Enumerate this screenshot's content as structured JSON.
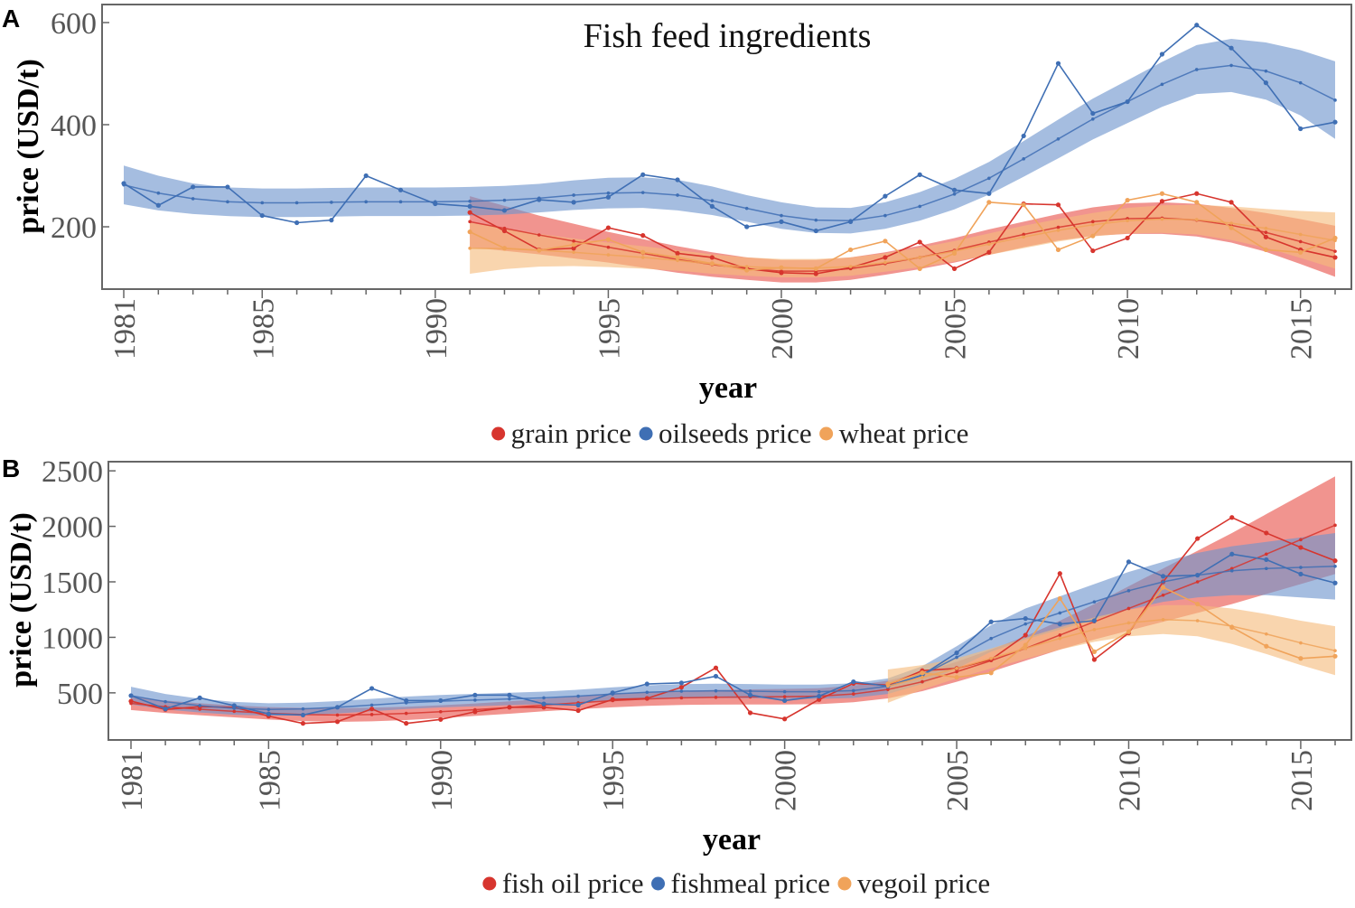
{
  "figure_labels": [
    "A",
    "B"
  ],
  "chart_data": [
    {
      "type": "line",
      "panel": "A",
      "title": "Fish feed ingredients",
      "xlabel": "year",
      "ylabel": "price (USD/t)",
      "xlim": [
        1981,
        2016
      ],
      "ylim": [
        85,
        630
      ],
      "x_ticks": [
        1981,
        1985,
        1990,
        1995,
        2000,
        2005,
        2010,
        2015
      ],
      "y_ticks": [
        200,
        400,
        600
      ],
      "legend_position": "bottom-center",
      "series": [
        {
          "name": "grain price",
          "color": "#d7352e",
          "band_color": "#e8524a",
          "x": [
            1991,
            1992,
            1993,
            1994,
            1995,
            1996,
            1997,
            1998,
            1999,
            2000,
            2001,
            2002,
            2003,
            2004,
            2005,
            2006,
            2007,
            2008,
            2009,
            2010,
            2011,
            2012,
            2013,
            2014,
            2015,
            2016
          ],
          "y": [
            228,
            192,
            155,
            158,
            198,
            183,
            148,
            140,
            118,
            110,
            108,
            120,
            140,
            170,
            118,
            150,
            245,
            243,
            153,
            178,
            250,
            265,
            248,
            180,
            155,
            140
          ],
          "trend": [
            210,
            197,
            184,
            172,
            160,
            148,
            136,
            126,
            118,
            113,
            113,
            118,
            128,
            140,
            154,
            170,
            185,
            199,
            210,
            216,
            217,
            213,
            203,
            189,
            171,
            152
          ],
          "band": [
            50,
            44,
            38,
            34,
            30,
            28,
            26,
            24,
            22,
            22,
            22,
            22,
            22,
            23,
            24,
            25,
            25,
            26,
            28,
            30,
            31,
            32,
            34,
            38,
            44,
            50
          ]
        },
        {
          "name": "oilseeds price",
          "color": "#3f6fb4",
          "band_color": "#6d95cd",
          "x": [
            1981,
            1982,
            1983,
            1984,
            1985,
            1986,
            1987,
            1988,
            1989,
            1990,
            1991,
            1992,
            1993,
            1994,
            1995,
            1996,
            1997,
            1998,
            1999,
            2000,
            2001,
            2002,
            2003,
            2004,
            2005,
            2006,
            2007,
            2008,
            2009,
            2010,
            2011,
            2012,
            2013,
            2014,
            2015,
            2016
          ],
          "y": [
            285,
            242,
            278,
            278,
            222,
            208,
            213,
            300,
            272,
            245,
            240,
            232,
            253,
            248,
            258,
            302,
            292,
            240,
            200,
            210,
            192,
            210,
            260,
            302,
            272,
            265,
            378,
            520,
            422,
            445,
            538,
            595,
            550,
            482,
            392,
            405
          ],
          "trend": [
            282,
            266,
            255,
            249,
            247,
            247,
            248,
            249,
            249,
            249,
            250,
            252,
            256,
            262,
            266,
            267,
            262,
            251,
            236,
            222,
            213,
            212,
            222,
            240,
            264,
            295,
            333,
            372,
            411,
            445,
            479,
            508,
            516,
            505,
            482,
            448
          ],
          "band": [
            38,
            34,
            30,
            28,
            28,
            28,
            28,
            28,
            28,
            28,
            28,
            28,
            28,
            29,
            30,
            30,
            30,
            28,
            26,
            26,
            25,
            25,
            26,
            28,
            30,
            32,
            35,
            38,
            40,
            42,
            44,
            48,
            52,
            56,
            64,
            76
          ]
        },
        {
          "name": "wheat price",
          "color": "#f0a35a",
          "band_color": "#f5bc7c",
          "x": [
            1991,
            1992,
            1993,
            1994,
            1995,
            1996,
            1997,
            1998,
            1999,
            2000,
            2001,
            2002,
            2003,
            2004,
            2005,
            2006,
            2007,
            2008,
            2009,
            2010,
            2011,
            2012,
            2013,
            2014,
            2015,
            2016
          ],
          "y": [
            190,
            158,
            154,
            165,
            175,
            150,
            140,
            128,
            115,
            120,
            118,
            155,
            172,
            118,
            148,
            248,
            243,
            155,
            182,
            252,
            265,
            248,
            198,
            155,
            150,
            178
          ],
          "trend": [
            158,
            157,
            154,
            150,
            145,
            140,
            134,
            127,
            122,
            119,
            119,
            122,
            130,
            140,
            152,
            166,
            180,
            193,
            204,
            212,
            215,
            214,
            207,
            197,
            185,
            173
          ],
          "band": [
            50,
            40,
            32,
            27,
            24,
            22,
            20,
            19,
            18,
            18,
            18,
            18,
            18,
            19,
            20,
            21,
            22,
            22,
            23,
            25,
            27,
            29,
            33,
            38,
            46,
            55
          ]
        }
      ]
    },
    {
      "type": "line",
      "panel": "B",
      "title": "",
      "xlabel": "year",
      "ylabel": "price (USD/t)",
      "xlim": [
        1981,
        2016
      ],
      "ylim": [
        100,
        2550
      ],
      "x_ticks": [
        1981,
        1985,
        1990,
        1995,
        2000,
        2005,
        2010,
        2015
      ],
      "y_ticks": [
        500,
        1000,
        1500,
        2000,
        2500
      ],
      "legend_position": "bottom-center",
      "series": [
        {
          "name": "fish oil price",
          "color": "#d7352e",
          "band_color": "#e8524a",
          "x": [
            1981,
            1982,
            1983,
            1984,
            1985,
            1986,
            1987,
            1988,
            1989,
            1990,
            1991,
            1992,
            1993,
            1994,
            1995,
            1996,
            1997,
            1998,
            1999,
            2000,
            2001,
            2002,
            2003,
            2004,
            2005,
            2006,
            2007,
            2008,
            2009,
            2010,
            2011,
            2012,
            2013,
            2014,
            2015,
            2016
          ],
          "y": [
            425,
            350,
            375,
            370,
            290,
            225,
            240,
            355,
            225,
            260,
            330,
            370,
            370,
            340,
            440,
            450,
            550,
            725,
            320,
            265,
            440,
            585,
            570,
            700,
            720,
            800,
            1020,
            1575,
            800,
            1040,
            1500,
            1890,
            2080,
            1940,
            1810,
            1690
          ],
          "trend": [
            405,
            375,
            352,
            333,
            316,
            305,
            300,
            305,
            315,
            330,
            348,
            368,
            390,
            410,
            430,
            445,
            455,
            460,
            463,
            465,
            470,
            490,
            530,
            600,
            690,
            790,
            900,
            1020,
            1140,
            1260,
            1380,
            1500,
            1620,
            1750,
            1880,
            2010
          ],
          "band": [
            60,
            56,
            54,
            54,
            56,
            60,
            62,
            62,
            60,
            58,
            56,
            56,
            56,
            58,
            60,
            62,
            64,
            66,
            68,
            70,
            72,
            75,
            80,
            85,
            90,
            100,
            110,
            130,
            160,
            200,
            240,
            280,
            320,
            360,
            400,
            440
          ]
        },
        {
          "name": "fishmeal price",
          "color": "#3f6fb4",
          "band_color": "#6d95cd",
          "x": [
            1981,
            1982,
            1983,
            1984,
            1985,
            1986,
            1987,
            1988,
            1989,
            1990,
            1991,
            1992,
            1993,
            1994,
            1995,
            1996,
            1997,
            1998,
            1999,
            2000,
            2001,
            2002,
            2003,
            2004,
            2005,
            2006,
            2007,
            2008,
            2009,
            2010,
            2011,
            2012,
            2013,
            2014,
            2015,
            2016
          ],
          "y": [
            475,
            355,
            455,
            385,
            310,
            300,
            370,
            540,
            430,
            430,
            480,
            480,
            400,
            390,
            500,
            580,
            590,
            650,
            480,
            430,
            470,
            600,
            560,
            660,
            860,
            1140,
            1170,
            1120,
            1150,
            1680,
            1550,
            1560,
            1750,
            1700,
            1570,
            1490
          ],
          "trend": [
            475,
            420,
            385,
            360,
            350,
            355,
            370,
            390,
            410,
            425,
            435,
            445,
            455,
            470,
            490,
            505,
            515,
            518,
            515,
            510,
            510,
            520,
            560,
            660,
            820,
            990,
            1120,
            1220,
            1320,
            1420,
            1500,
            1560,
            1600,
            1620,
            1630,
            1640
          ],
          "band": [
            80,
            70,
            62,
            58,
            56,
            56,
            56,
            56,
            56,
            56,
            56,
            56,
            56,
            58,
            60,
            62,
            64,
            64,
            64,
            64,
            64,
            66,
            70,
            80,
            100,
            120,
            140,
            150,
            160,
            170,
            180,
            200,
            220,
            240,
            270,
            300
          ]
        },
        {
          "name": "vegoil price",
          "color": "#f0a35a",
          "band_color": "#f5bc7c",
          "x": [
            2003,
            2004,
            2005,
            2006,
            2007,
            2008,
            2009,
            2010,
            2011,
            2012,
            2013,
            2014,
            2015,
            2016
          ],
          "y": [
            580,
            680,
            640,
            680,
            930,
            1350,
            870,
            1050,
            1450,
            1300,
            1090,
            920,
            810,
            830
          ],
          "trend": [
            560,
            640,
            720,
            810,
            900,
            990,
            1070,
            1130,
            1160,
            1150,
            1100,
            1030,
            950,
            880
          ],
          "band": [
            150,
            110,
            90,
            90,
            95,
            100,
            110,
            120,
            130,
            140,
            160,
            180,
            200,
            220
          ]
        }
      ]
    }
  ]
}
